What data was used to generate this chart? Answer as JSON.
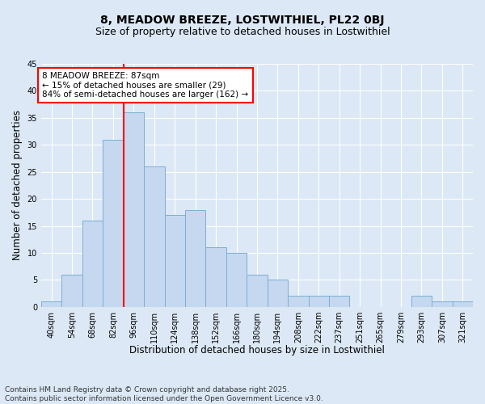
{
  "title": "8, MEADOW BREEZE, LOSTWITHIEL, PL22 0BJ",
  "subtitle": "Size of property relative to detached houses in Lostwithiel",
  "xlabel": "Distribution of detached houses by size in Lostwithiel",
  "ylabel": "Number of detached properties",
  "footnote1": "Contains HM Land Registry data © Crown copyright and database right 2025.",
  "footnote2": "Contains public sector information licensed under the Open Government Licence v3.0.",
  "bin_labels": [
    "40sqm",
    "54sqm",
    "68sqm",
    "82sqm",
    "96sqm",
    "110sqm",
    "124sqm",
    "138sqm",
    "152sqm",
    "166sqm",
    "180sqm",
    "194sqm",
    "208sqm",
    "222sqm",
    "237sqm",
    "251sqm",
    "265sqm",
    "279sqm",
    "293sqm",
    "307sqm",
    "321sqm"
  ],
  "bar_values": [
    1,
    6,
    16,
    31,
    36,
    26,
    17,
    18,
    11,
    10,
    6,
    5,
    2,
    2,
    2,
    0,
    0,
    0,
    2,
    1,
    1
  ],
  "bar_color": "#c5d8f0",
  "bar_edge_color": "#7bafd4",
  "vline_x": 3.5,
  "vline_color": "red",
  "annotation_text": "8 MEADOW BREEZE: 87sqm\n← 15% of detached houses are smaller (29)\n84% of semi-detached houses are larger (162) →",
  "annotation_box_color": "white",
  "annotation_box_edge": "red",
  "ylim": [
    0,
    45
  ],
  "yticks": [
    0,
    5,
    10,
    15,
    20,
    25,
    30,
    35,
    40,
    45
  ],
  "background_color": "#dce8f5",
  "grid_color": "white",
  "title_fontsize": 10,
  "subtitle_fontsize": 9,
  "axis_label_fontsize": 8.5,
  "tick_fontsize": 7,
  "footnote_fontsize": 6.5,
  "annotation_fontsize": 7.5
}
